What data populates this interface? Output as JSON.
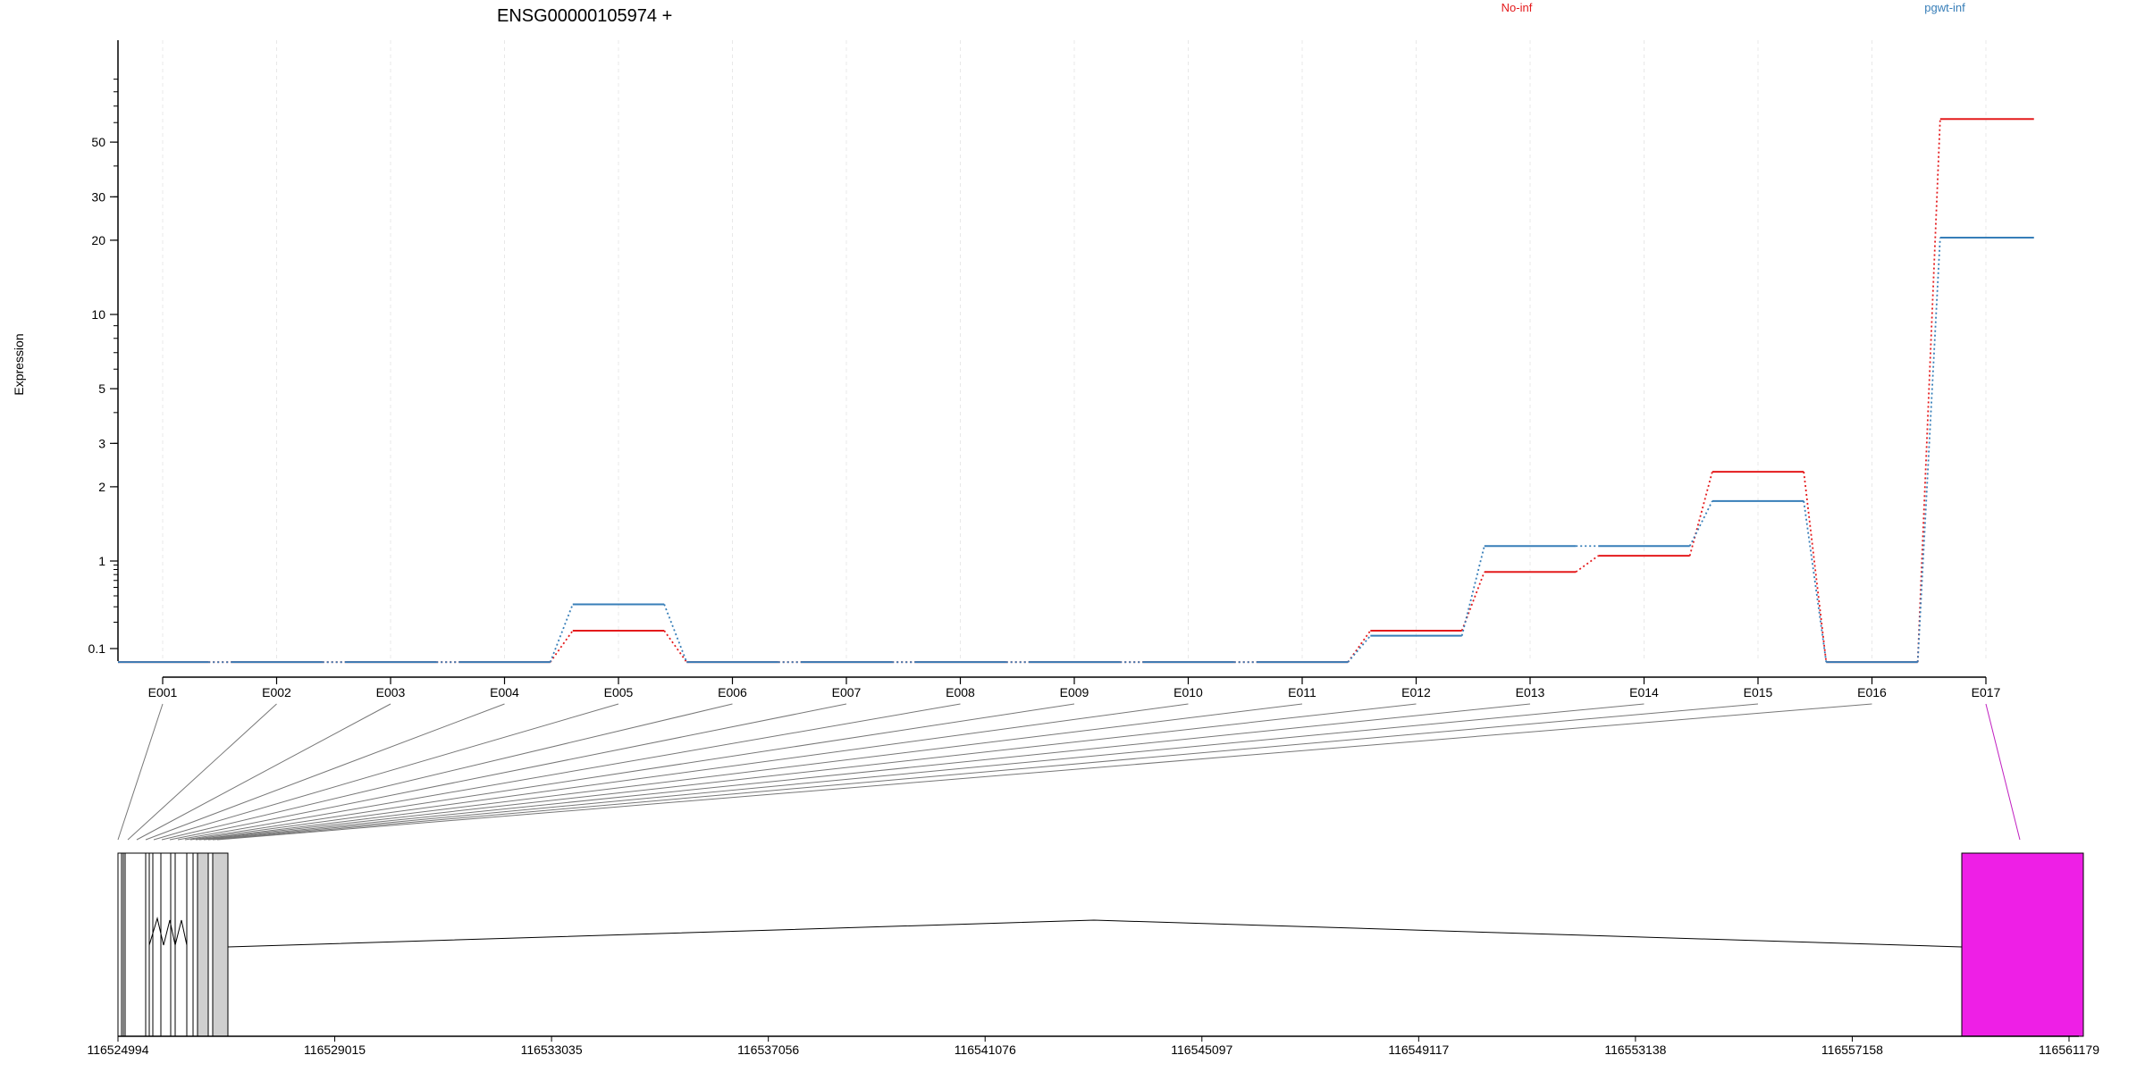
{
  "title": "ENSG00000105974 +",
  "colors": {
    "no_inf": "#e41a1c",
    "pgwt_inf": "#377eb8",
    "highlight": "#ee1fe6"
  },
  "chart_data": {
    "type": "line",
    "ylabel": "Expression",
    "y_scale": "log",
    "y_ticks": [
      0.1,
      1,
      2,
      3,
      5,
      10,
      20,
      30,
      50
    ],
    "y_tick_labels": [
      "0.1",
      "1",
      "2",
      "3",
      "5",
      "10",
      "20",
      "30",
      "50"
    ],
    "categories": [
      "E001",
      "E002",
      "E003",
      "E004",
      "E005",
      "E006",
      "E007",
      "E008",
      "E009",
      "E010",
      "E011",
      "E012",
      "E013",
      "E014",
      "E015",
      "E016",
      "E017"
    ],
    "series": [
      {
        "name": "No-inf",
        "color": "#e41a1c",
        "values": [
          0.07,
          0.07,
          0.07,
          0.07,
          0.16,
          0.07,
          0.07,
          0.07,
          0.07,
          0.07,
          0.07,
          0.16,
          0.75,
          1.05,
          2.3,
          0.07,
          62
        ]
      },
      {
        "name": "pgwt-inf",
        "color": "#377eb8",
        "values": [
          0.07,
          0.07,
          0.07,
          0.07,
          0.32,
          0.07,
          0.07,
          0.07,
          0.07,
          0.07,
          0.07,
          0.14,
          1.15,
          1.15,
          1.75,
          0.07,
          20.5
        ]
      }
    ],
    "gene_axis_ticks": [
      "116524994",
      "116529015",
      "116533035",
      "116537056",
      "116541076",
      "116545097",
      "116549117",
      "116553138",
      "116557158",
      "116561179"
    ],
    "highlighted_exon": "E017"
  }
}
